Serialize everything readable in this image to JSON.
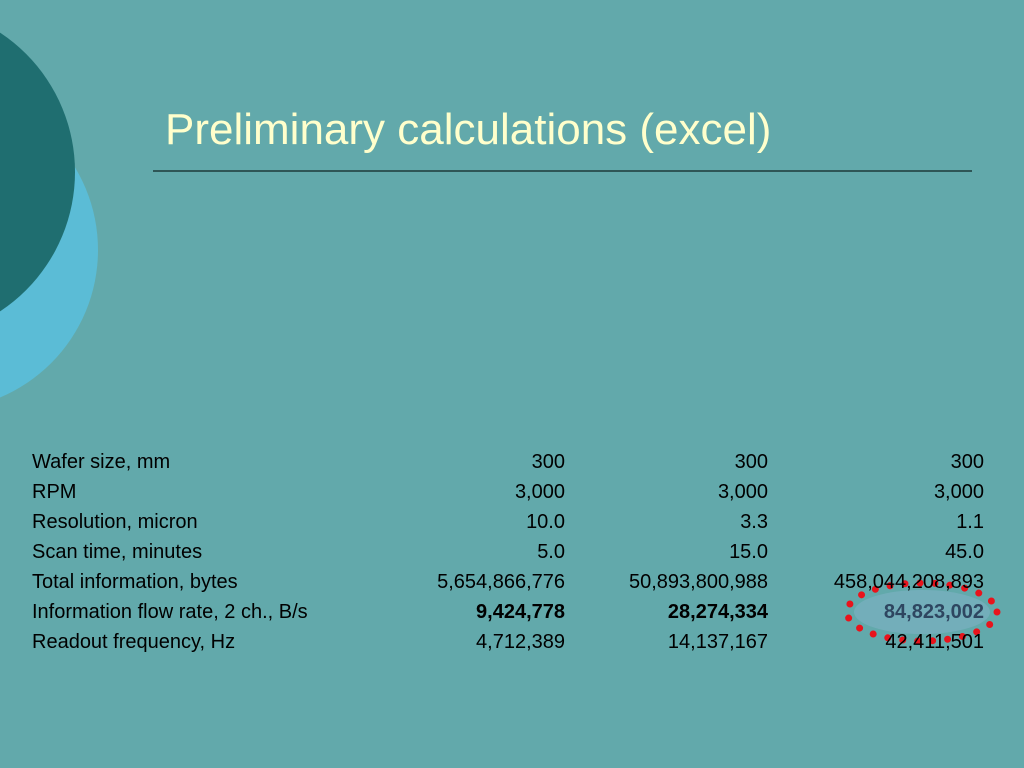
{
  "title": "Preliminary calculations (excel)",
  "table": {
    "rows": [
      [
        "Wafer size, mm",
        "300",
        "300",
        "300"
      ],
      [
        "RPM",
        "3,000",
        "3,000",
        "3,000"
      ],
      [
        "Resolution, micron",
        "10.0",
        "3.3",
        "1.1"
      ],
      [
        "Scan time, minutes",
        "5.0",
        "15.0",
        "45.0"
      ],
      [
        "Total information, bytes",
        "5,654,866,776",
        "50,893,800,988",
        "458,044,208,893"
      ],
      [
        "Information flow rate, 2 ch., B/s",
        "9,424,778",
        "28,274,334",
        "84,823,002"
      ],
      [
        "Readout frequency, Hz",
        "4,712,389",
        "14,137,167",
        "42,411,501"
      ]
    ]
  }
}
